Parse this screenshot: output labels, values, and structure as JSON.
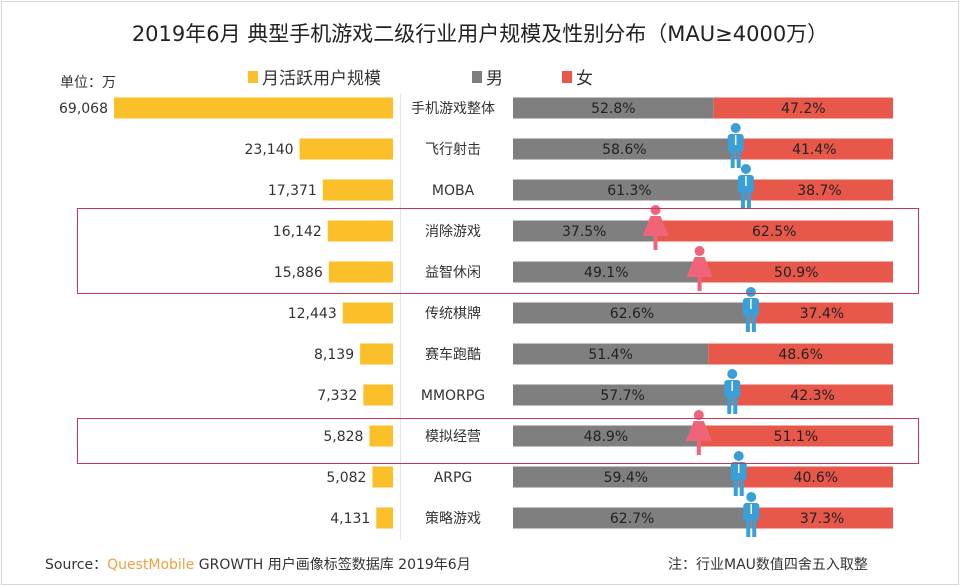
{
  "chart_data": {
    "type": "bar",
    "title": "2019年6月 典型手机游戏二级行业用户规模及性别分布（MAU≥4000万）",
    "unit_label": "单位：万",
    "legend": [
      "月活跃用户规模",
      "男",
      "女"
    ],
    "colors": {
      "mau": "#fbbf2a",
      "male": "#7f7f7f",
      "female": "#e8584a",
      "male_icon": "#3a9fd6",
      "female_icon": "#f0647a",
      "highlight": "#c8375a"
    },
    "categories": [
      "手机游戏整体",
      "飞行射击",
      "MOBA",
      "消除游戏",
      "益智休闲",
      "传统棋牌",
      "赛车跑酷",
      "MMORPG",
      "模拟经营",
      "ARPG",
      "策略游戏"
    ],
    "series": [
      {
        "name": "月活跃用户规模",
        "values": [
          69068,
          23140,
          17371,
          16142,
          15886,
          12443,
          8139,
          7332,
          5828,
          5082,
          4131
        ],
        "labels": [
          "69,068",
          "23,140",
          "17,371",
          "16,142",
          "15,886",
          "12,443",
          "8,139",
          "7,332",
          "5,828",
          "5,082",
          "4,131"
        ]
      },
      {
        "name": "男",
        "values": [
          52.8,
          58.6,
          61.3,
          37.5,
          49.1,
          62.6,
          51.4,
          57.7,
          48.9,
          59.4,
          62.7
        ],
        "labels": [
          "52.8%",
          "58.6%",
          "61.3%",
          "37.5%",
          "49.1%",
          "62.6%",
          "51.4%",
          "57.7%",
          "48.9%",
          "59.4%",
          "62.7%"
        ]
      },
      {
        "name": "女",
        "values": [
          47.2,
          41.4,
          38.7,
          62.5,
          50.9,
          37.4,
          48.6,
          42.3,
          51.1,
          40.6,
          37.3
        ],
        "labels": [
          "47.2%",
          "41.4%",
          "38.7%",
          "62.5%",
          "50.9%",
          "37.4%",
          "48.6%",
          "42.3%",
          "51.1%",
          "40.6%",
          "37.3%"
        ]
      }
    ],
    "icons": [
      "none",
      "male",
      "male",
      "female",
      "female",
      "male",
      "none",
      "male",
      "female",
      "male",
      "male"
    ],
    "highlighted_categories": [
      "消除游戏",
      "益智休闲",
      "模拟经营"
    ]
  },
  "footer": {
    "source_prefix": "Source：",
    "brand": "QuestMobile",
    "source_rest": " GROWTH 用户画像标签数据库 2019年6月",
    "note": "注：行业MAU数值四舍五入取整"
  }
}
